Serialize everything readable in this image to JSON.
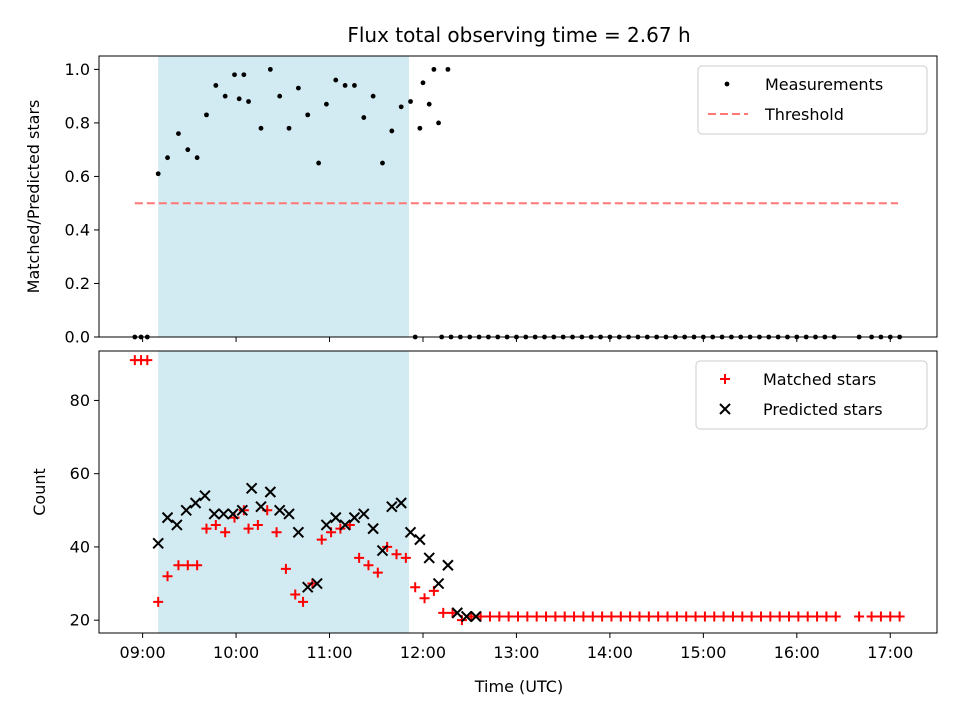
{
  "chart_data": {
    "title": "Flux total observing time = 2.67 h",
    "xlabel": "Time (UTC)",
    "xlim": [
      "08:32",
      "17:30"
    ],
    "x_ticks": [
      "09:00",
      "10:00",
      "11:00",
      "12:00",
      "13:00",
      "14:00",
      "15:00",
      "16:00",
      "17:00"
    ],
    "shaded_span": {
      "start": "09:10",
      "end": "11:51",
      "color": "#add8e6"
    },
    "panels": [
      {
        "type": "scatter",
        "ylabel": "Matched/Predicted stars",
        "ylim": [
          0,
          1.05
        ],
        "y_ticks": [
          "0.0",
          "0.2",
          "0.4",
          "0.6",
          "0.8",
          "1.0"
        ],
        "legend_position": "upper-right",
        "threshold": {
          "name": "Threshold",
          "y": 0.5,
          "x_start": "08:55",
          "x_end": "17:05",
          "color": "#ff7777"
        },
        "series": [
          {
            "name": "Measurements",
            "marker": "dot",
            "color": "#000000",
            "points": [
              [
                "08:55",
                0
              ],
              [
                "08:59",
                0
              ],
              [
                "09:03",
                0
              ],
              [
                "09:10",
                0.61
              ],
              [
                "09:16",
                0.67
              ],
              [
                "09:23",
                0.76
              ],
              [
                "09:29",
                0.7
              ],
              [
                "09:35",
                0.67
              ],
              [
                "09:41",
                0.83
              ],
              [
                "09:47",
                0.94
              ],
              [
                "09:53",
                0.9
              ],
              [
                "09:59",
                0.98
              ],
              [
                "10:05",
                0.98
              ],
              [
                "10:02",
                0.89
              ],
              [
                "10:08",
                0.88
              ],
              [
                "10:16",
                0.78
              ],
              [
                "10:22",
                1.0
              ],
              [
                "10:28",
                0.9
              ],
              [
                "10:34",
                0.78
              ],
              [
                "10:40",
                0.93
              ],
              [
                "10:46",
                0.83
              ],
              [
                "10:53",
                0.65
              ],
              [
                "10:58",
                0.87
              ],
              [
                "11:04",
                0.96
              ],
              [
                "11:10",
                0.94
              ],
              [
                "11:16",
                0.94
              ],
              [
                "11:22",
                0.82
              ],
              [
                "11:28",
                0.9
              ],
              [
                "11:34",
                0.65
              ],
              [
                "11:40",
                0.77
              ],
              [
                "11:46",
                0.86
              ],
              [
                "11:52",
                0.88
              ],
              [
                "11:58",
                0.78
              ],
              [
                "12:04",
                0.87
              ],
              [
                "12:10",
                0.8
              ],
              [
                "12:16",
                1.0
              ],
              [
                "11:55",
                0.0
              ],
              [
                "12:00",
                0.95
              ],
              [
                "12:07",
                1.0
              ],
              [
                "12:12",
                0
              ],
              [
                "12:18",
                0
              ],
              [
                "12:24",
                0
              ],
              [
                "12:30",
                0
              ],
              [
                "12:36",
                0
              ],
              [
                "12:42",
                0
              ],
              [
                "12:48",
                0
              ],
              [
                "12:54",
                0
              ],
              [
                "13:00",
                0
              ],
              [
                "13:06",
                0
              ],
              [
                "13:12",
                0
              ],
              [
                "13:18",
                0
              ],
              [
                "13:24",
                0
              ],
              [
                "13:30",
                0
              ],
              [
                "13:36",
                0
              ],
              [
                "13:42",
                0
              ],
              [
                "13:48",
                0
              ],
              [
                "13:54",
                0
              ],
              [
                "14:00",
                0
              ],
              [
                "14:06",
                0
              ],
              [
                "14:12",
                0
              ],
              [
                "14:18",
                0
              ],
              [
                "14:24",
                0
              ],
              [
                "14:30",
                0
              ],
              [
                "14:36",
                0
              ],
              [
                "14:42",
                0
              ],
              [
                "14:48",
                0
              ],
              [
                "14:54",
                0
              ],
              [
                "15:00",
                0
              ],
              [
                "15:06",
                0
              ],
              [
                "15:12",
                0
              ],
              [
                "15:18",
                0
              ],
              [
                "15:24",
                0
              ],
              [
                "15:30",
                0
              ],
              [
                "15:36",
                0
              ],
              [
                "15:42",
                0
              ],
              [
                "15:48",
                0
              ],
              [
                "15:54",
                0
              ],
              [
                "16:00",
                0
              ],
              [
                "16:06",
                0
              ],
              [
                "16:12",
                0
              ],
              [
                "16:18",
                0
              ],
              [
                "16:24",
                0
              ],
              [
                "16:40",
                0
              ],
              [
                "16:48",
                0
              ],
              [
                "16:54",
                0
              ],
              [
                "17:00",
                0
              ],
              [
                "17:06",
                0
              ]
            ]
          }
        ]
      },
      {
        "type": "scatter",
        "ylabel": "Count",
        "ylim": [
          16.5,
          93.5
        ],
        "y_ticks": [
          "20",
          "40",
          "60",
          "80"
        ],
        "legend_position": "upper-right",
        "series": [
          {
            "name": "Matched stars",
            "marker": "plus",
            "color": "#ff0000",
            "points": [
              [
                "08:55",
                91
              ],
              [
                "08:59",
                91
              ],
              [
                "09:03",
                91
              ],
              [
                "09:10",
                25
              ],
              [
                "09:16",
                32
              ],
              [
                "09:23",
                35
              ],
              [
                "09:29",
                35
              ],
              [
                "09:35",
                35
              ],
              [
                "09:41",
                45
              ],
              [
                "09:47",
                46
              ],
              [
                "09:53",
                44
              ],
              [
                "09:59",
                48
              ],
              [
                "10:05",
                50
              ],
              [
                "10:08",
                45
              ],
              [
                "10:14",
                46
              ],
              [
                "10:20",
                50
              ],
              [
                "10:26",
                44
              ],
              [
                "10:32",
                34
              ],
              [
                "10:38",
                27
              ],
              [
                "10:43",
                25
              ],
              [
                "10:49",
                30
              ],
              [
                "10:55",
                42
              ],
              [
                "11:01",
                44
              ],
              [
                "11:07",
                45
              ],
              [
                "11:13",
                46
              ],
              [
                "11:19",
                37
              ],
              [
                "11:25",
                35
              ],
              [
                "11:31",
                33
              ],
              [
                "11:37",
                40
              ],
              [
                "11:43",
                38
              ],
              [
                "11:49",
                37
              ],
              [
                "11:55",
                29
              ],
              [
                "12:01",
                26
              ],
              [
                "12:07",
                28
              ],
              [
                "12:13",
                22
              ],
              [
                "12:19",
                22
              ],
              [
                "12:25",
                20
              ],
              [
                "12:31",
                21
              ],
              [
                "12:37",
                21
              ],
              [
                "12:43",
                21
              ],
              [
                "12:49",
                21
              ],
              [
                "12:55",
                21
              ],
              [
                "13:01",
                21
              ],
              [
                "13:07",
                21
              ],
              [
                "13:13",
                21
              ],
              [
                "13:19",
                21
              ],
              [
                "13:25",
                21
              ],
              [
                "13:31",
                21
              ],
              [
                "13:37",
                21
              ],
              [
                "13:43",
                21
              ],
              [
                "13:49",
                21
              ],
              [
                "13:55",
                21
              ],
              [
                "14:01",
                21
              ],
              [
                "14:07",
                21
              ],
              [
                "14:13",
                21
              ],
              [
                "14:19",
                21
              ],
              [
                "14:25",
                21
              ],
              [
                "14:31",
                21
              ],
              [
                "14:37",
                21
              ],
              [
                "14:43",
                21
              ],
              [
                "14:49",
                21
              ],
              [
                "14:55",
                21
              ],
              [
                "15:01",
                21
              ],
              [
                "15:07",
                21
              ],
              [
                "15:13",
                21
              ],
              [
                "15:19",
                21
              ],
              [
                "15:25",
                21
              ],
              [
                "15:31",
                21
              ],
              [
                "15:37",
                21
              ],
              [
                "15:43",
                21
              ],
              [
                "15:49",
                21
              ],
              [
                "15:55",
                21
              ],
              [
                "16:01",
                21
              ],
              [
                "16:07",
                21
              ],
              [
                "16:13",
                21
              ],
              [
                "16:19",
                21
              ],
              [
                "16:25",
                21
              ],
              [
                "16:40",
                21
              ],
              [
                "16:48",
                21
              ],
              [
                "16:54",
                21
              ],
              [
                "17:00",
                21
              ],
              [
                "17:06",
                21
              ]
            ]
          },
          {
            "name": "Predicted stars",
            "marker": "x",
            "color": "#000000",
            "points": [
              [
                "09:10",
                41
              ],
              [
                "09:16",
                48
              ],
              [
                "09:22",
                46
              ],
              [
                "09:28",
                50
              ],
              [
                "09:34",
                52
              ],
              [
                "09:40",
                54
              ],
              [
                "09:46",
                49
              ],
              [
                "09:52",
                49
              ],
              [
                "09:58",
                49
              ],
              [
                "10:04",
                50
              ],
              [
                "10:10",
                56
              ],
              [
                "10:16",
                51
              ],
              [
                "10:22",
                55
              ],
              [
                "10:28",
                50
              ],
              [
                "10:34",
                49
              ],
              [
                "10:40",
                44
              ],
              [
                "10:46",
                29
              ],
              [
                "10:52",
                30
              ],
              [
                "10:58",
                46
              ],
              [
                "11:04",
                48
              ],
              [
                "11:10",
                46
              ],
              [
                "11:16",
                48
              ],
              [
                "11:22",
                49
              ],
              [
                "11:28",
                45
              ],
              [
                "11:34",
                39
              ],
              [
                "11:40",
                51
              ],
              [
                "11:46",
                52
              ],
              [
                "11:52",
                44
              ],
              [
                "11:58",
                42
              ],
              [
                "12:04",
                37
              ],
              [
                "12:10",
                30
              ],
              [
                "12:16",
                35
              ],
              [
                "12:22",
                22
              ],
              [
                "12:28",
                21
              ],
              [
                "12:34",
                21
              ]
            ]
          }
        ]
      }
    ]
  }
}
